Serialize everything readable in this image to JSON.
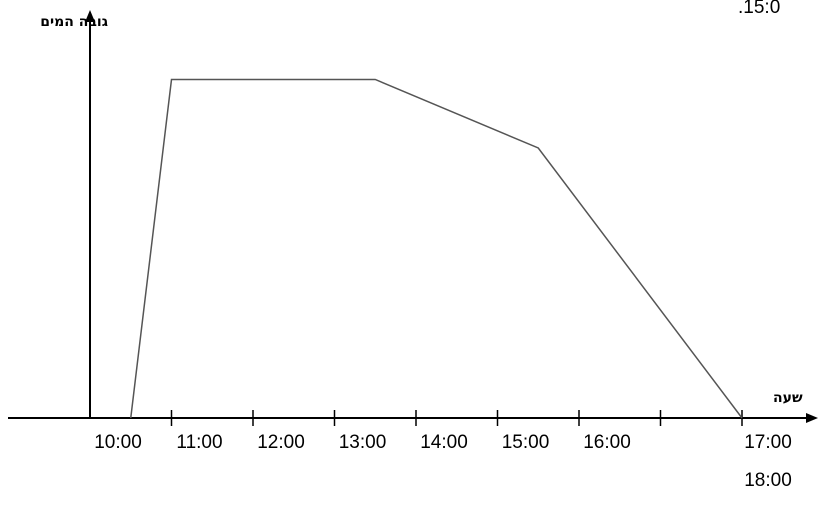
{
  "chart_data": {
    "type": "line",
    "y_label": "גובה המים",
    "x_label": "שעה",
    "annotation": ".15:0",
    "x": [
      10.5,
      11,
      13.5,
      15.5,
      18
    ],
    "series": [
      {
        "color": "#555555",
        "values": [
          0,
          8.4,
          8.4,
          6.7,
          0
        ]
      }
    ],
    "xlim": [
      10,
      18
    ],
    "xticks": [
      {
        "value": 10,
        "label": "10:00"
      },
      {
        "value": 11,
        "label": "11:00"
      },
      {
        "value": 12,
        "label": "12:00"
      },
      {
        "value": 13,
        "label": "13:00"
      },
      {
        "value": 14,
        "label": "14:00"
      },
      {
        "value": 15,
        "label": "15:00"
      },
      {
        "value": 16,
        "label": "16:00"
      },
      {
        "value": 17,
        "label": "17:00"
      },
      {
        "value": 18,
        "label": "18:00"
      }
    ],
    "ylim": [
      0,
      10
    ]
  }
}
